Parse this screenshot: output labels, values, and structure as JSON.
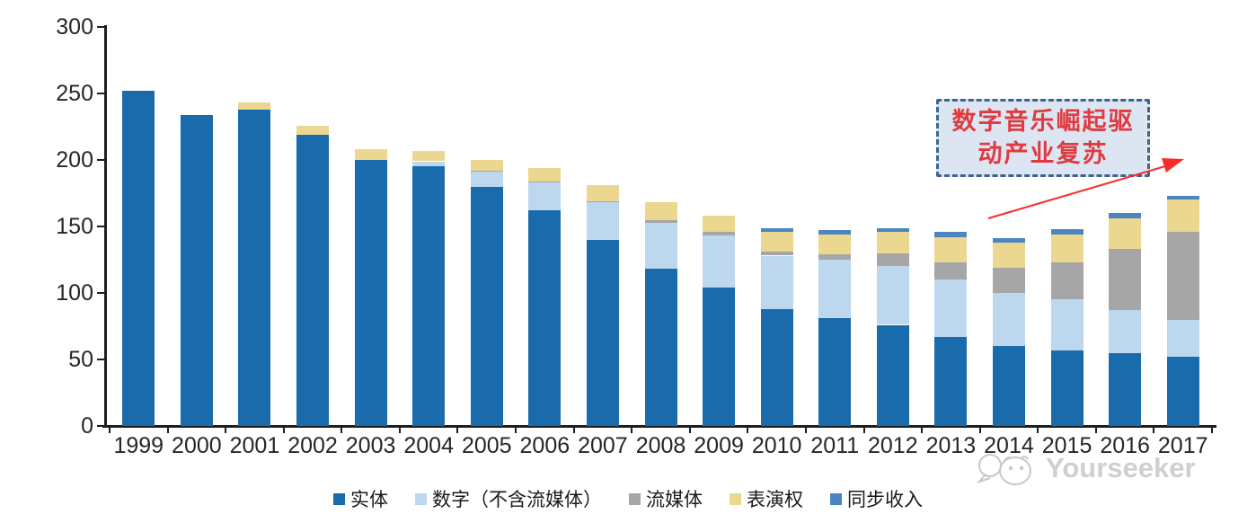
{
  "chart_data": {
    "type": "bar",
    "stacked": true,
    "title": "",
    "xlabel": "",
    "ylabel": "",
    "categories": [
      "1999",
      "2000",
      "2001",
      "2002",
      "2003",
      "2004",
      "2005",
      "2006",
      "2007",
      "2008",
      "2009",
      "2010",
      "2011",
      "2012",
      "2013",
      "2014",
      "2015",
      "2016",
      "2017"
    ],
    "series": [
      {
        "name": "实体",
        "color": "#1A6BAC",
        "values": [
          252,
          234,
          238,
          219,
          200,
          195,
          180,
          162,
          140,
          118,
          104,
          88,
          81,
          76,
          67,
          60,
          57,
          55,
          52
        ]
      },
      {
        "name": "数字（不含流媒体）",
        "color": "#BDD7EE",
        "values": [
          0,
          0,
          0,
          0,
          0,
          4,
          11,
          21,
          28,
          35,
          39,
          40,
          44,
          44,
          43,
          40,
          38,
          32,
          28
        ]
      },
      {
        "name": "流媒体",
        "color": "#A6A6A6",
        "values": [
          0,
          0,
          0,
          0,
          0,
          0,
          1,
          1,
          1,
          2,
          3,
          3,
          4,
          10,
          13,
          19,
          28,
          46,
          66
        ]
      },
      {
        "name": "表演权",
        "color": "#EBD78F",
        "values": [
          0,
          0,
          5,
          7,
          8,
          8,
          8,
          10,
          12,
          13,
          12,
          15,
          15,
          16,
          19,
          19,
          21,
          23,
          24
        ]
      },
      {
        "name": "同步收入",
        "color": "#4C86C0",
        "values": [
          0,
          0,
          0,
          0,
          0,
          0,
          0,
          0,
          0,
          0,
          0,
          3,
          3,
          3,
          4,
          3,
          4,
          4,
          3
        ]
      }
    ],
    "totals": [
      252,
      234,
      243,
      226,
      208,
      207,
      200,
      194,
      181,
      168,
      158,
      149,
      147,
      149,
      146,
      141,
      148,
      160,
      173
    ],
    "ylim": [
      0,
      300
    ],
    "yticks": [
      0,
      50,
      100,
      150,
      200,
      250,
      300
    ],
    "grid": false,
    "legend_position": "bottom",
    "axis_color": "#1f1f1f"
  },
  "annotation": {
    "line1": "数字音乐崛起驱",
    "line2": "动产业复苏",
    "fill": "#DCE6F2",
    "border_color": "#3E6390",
    "text_color": "#E03A40",
    "arrow_color": "#F92C2C"
  },
  "watermark": {
    "text": "Yourseeker",
    "color": "#cdcdcd"
  }
}
